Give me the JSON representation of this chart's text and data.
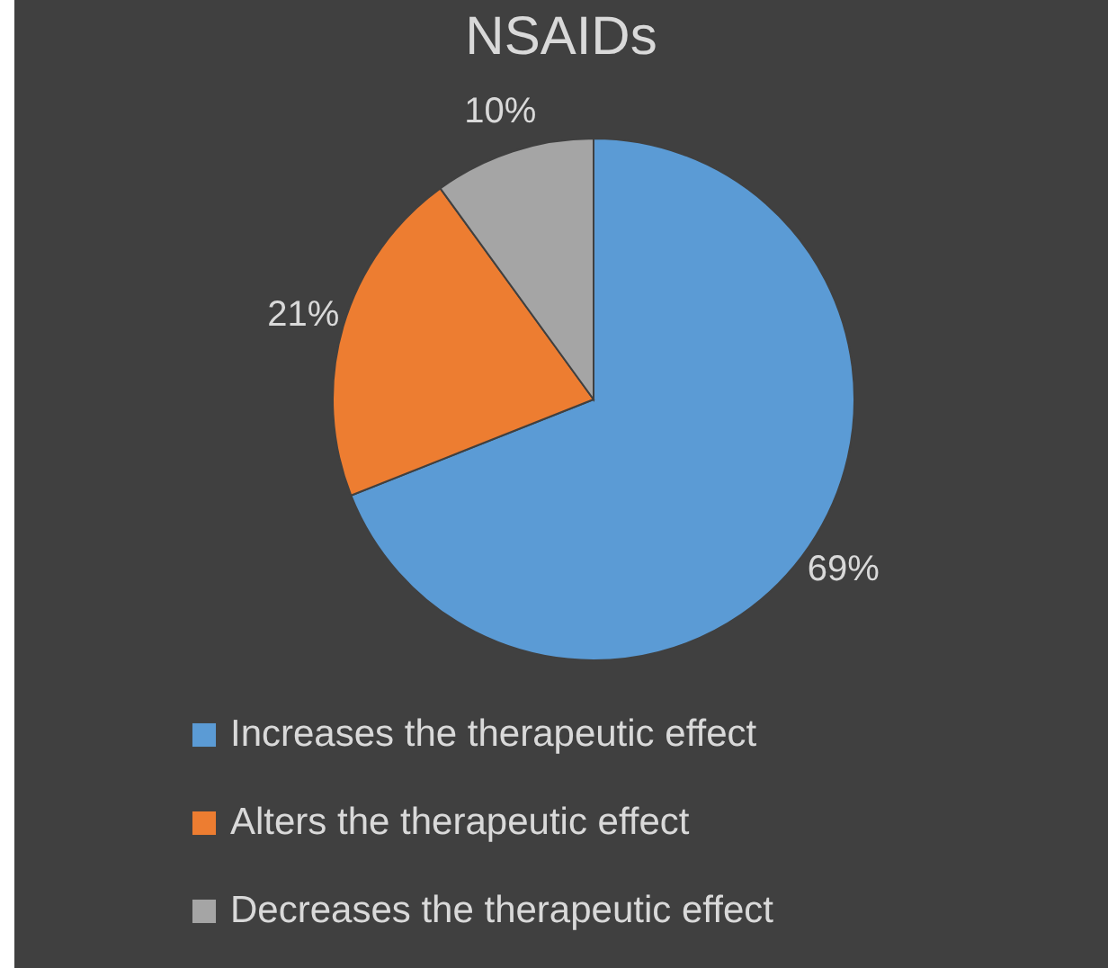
{
  "chart_data": {
    "type": "pie",
    "title": "NSAIDs",
    "categories": [
      "Increases the therapeutic effect",
      "Alters the therapeutic effect",
      "Decreases the therapeutic effect"
    ],
    "values": [
      69,
      21,
      10
    ],
    "colors": [
      "#5b9bd5",
      "#ed7d31",
      "#a5a5a5"
    ],
    "value_labels": [
      "69%",
      "21%",
      "10%"
    ],
    "legend": "bottom"
  }
}
